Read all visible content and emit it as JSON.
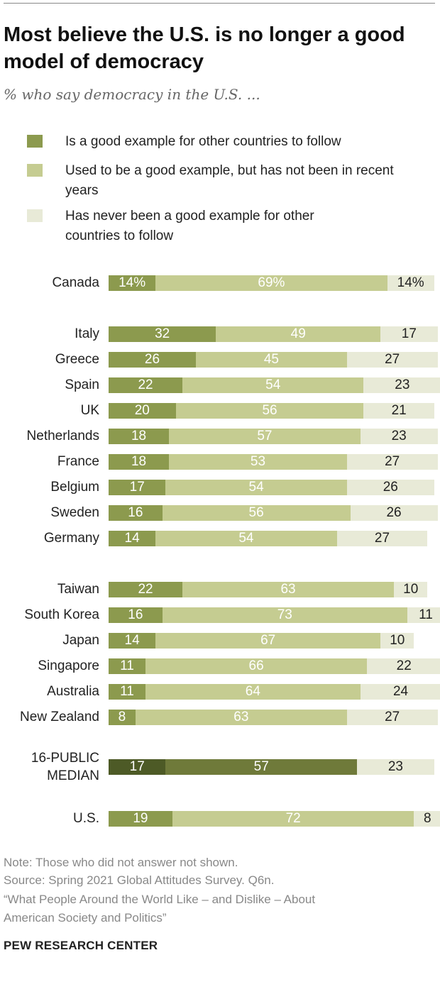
{
  "header": {
    "title": "Most believe the U.S. is no longer a good model of democracy",
    "subtitle": "% who say democracy in the U.S. ..."
  },
  "colors": {
    "good_example": "#8c9a4e",
    "used_to_be": "#c5cc91",
    "never": "#e8ead7",
    "median_good": "#4d5a26",
    "median_used": "#6f7a3a"
  },
  "legend": [
    {
      "label": "Is a good example for other countries to follow",
      "color": "#8c9a4e"
    },
    {
      "label": "Used to be a good example, but has not been in recent years",
      "color": "#c5cc91"
    },
    {
      "label": "Has never been a good example for other countries to follow",
      "color": "#e8ead7"
    }
  ],
  "chart_data": {
    "type": "bar",
    "orientation": "horizontal",
    "stacked": true,
    "series": [
      {
        "name": "Is a good example for other countries to follow"
      },
      {
        "name": "Used to be a good example, but has not been in recent years"
      },
      {
        "name": "Has never been a good example for other countries to follow"
      }
    ],
    "rows": [
      {
        "label": "Canada",
        "values": [
          14,
          69,
          14
        ],
        "display": [
          "14%",
          "69%",
          "14%"
        ]
      },
      {
        "label": "Italy",
        "values": [
          32,
          49,
          17
        ],
        "display": [
          "32",
          "49",
          "17"
        ]
      },
      {
        "label": "Greece",
        "values": [
          26,
          45,
          27
        ],
        "display": [
          "26",
          "45",
          "27"
        ]
      },
      {
        "label": "Spain",
        "values": [
          22,
          54,
          23
        ],
        "display": [
          "22",
          "54",
          "23"
        ]
      },
      {
        "label": "UK",
        "values": [
          20,
          56,
          21
        ],
        "display": [
          "20",
          "56",
          "21"
        ]
      },
      {
        "label": "Netherlands",
        "values": [
          18,
          57,
          23
        ],
        "display": [
          "18",
          "57",
          "23"
        ]
      },
      {
        "label": "France",
        "values": [
          18,
          53,
          27
        ],
        "display": [
          "18",
          "53",
          "27"
        ]
      },
      {
        "label": "Belgium",
        "values": [
          17,
          54,
          26
        ],
        "display": [
          "17",
          "54",
          "26"
        ]
      },
      {
        "label": "Sweden",
        "values": [
          16,
          56,
          26
        ],
        "display": [
          "16",
          "56",
          "26"
        ]
      },
      {
        "label": "Germany",
        "values": [
          14,
          54,
          27
        ],
        "display": [
          "14",
          "54",
          "27"
        ]
      },
      {
        "label": "Taiwan",
        "values": [
          22,
          63,
          10
        ],
        "display": [
          "22",
          "63",
          "10"
        ]
      },
      {
        "label": "South Korea",
        "values": [
          16,
          73,
          11
        ],
        "display": [
          "16",
          "73",
          "11"
        ]
      },
      {
        "label": "Japan",
        "values": [
          14,
          67,
          10
        ],
        "display": [
          "14",
          "67",
          "10"
        ]
      },
      {
        "label": "Singapore",
        "values": [
          11,
          66,
          22
        ],
        "display": [
          "11",
          "66",
          "22"
        ]
      },
      {
        "label": "Australia",
        "values": [
          11,
          64,
          24
        ],
        "display": [
          "11",
          "64",
          "24"
        ]
      },
      {
        "label": "New Zealand",
        "values": [
          8,
          63,
          27
        ],
        "display": [
          "8",
          "63",
          "27"
        ]
      },
      {
        "label": "16-PUBLIC MEDIAN",
        "values": [
          17,
          57,
          23
        ],
        "display": [
          "17",
          "57",
          "23"
        ],
        "median": true
      },
      {
        "label": "U.S.",
        "values": [
          19,
          72,
          8
        ],
        "display": [
          "19",
          "72",
          "8"
        ]
      }
    ]
  },
  "footer": {
    "note": "Note: Those who did not answer not shown.",
    "source": "Source: Spring 2021 Global Attitudes Survey. Q6n.",
    "report_line1": "“What People Around the World Like – and Dislike – About",
    "report_line2": "American Society and Politics”",
    "brand": "PEW RESEARCH CENTER"
  }
}
